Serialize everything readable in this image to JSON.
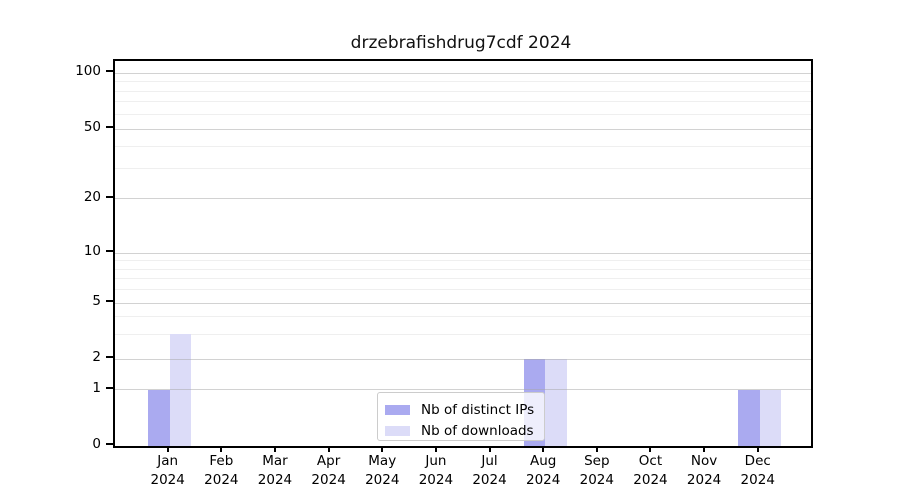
{
  "chart_data": {
    "type": "bar",
    "title": "drzebrafishdrug7cdf 2024",
    "categories": [
      "Jan 2024",
      "Feb 2024",
      "Mar 2024",
      "Apr 2024",
      "May 2024",
      "Jun 2024",
      "Jul 2024",
      "Aug 2024",
      "Sep 2024",
      "Oct 2024",
      "Nov 2024",
      "Dec 2024"
    ],
    "series": [
      {
        "name": "Nb of distinct IPs",
        "color": "#aaaaf0",
        "values": [
          1,
          0,
          0,
          0,
          0,
          0,
          0,
          2,
          0,
          0,
          0,
          1
        ]
      },
      {
        "name": "Nb of downloads",
        "color": "#dcdcf8",
        "values": [
          3,
          0,
          0,
          0,
          0,
          0,
          0,
          2,
          0,
          0,
          0,
          1
        ]
      }
    ],
    "xlabel": "",
    "ylabel": "",
    "y_axis": {
      "scale": "log-like with 0 baseline",
      "major_ticks": [
        0,
        1,
        2,
        5,
        10,
        20,
        50,
        100
      ],
      "minor_ticks": [
        3,
        4,
        6,
        7,
        8,
        9,
        30,
        40,
        60,
        70,
        80,
        90
      ],
      "ylim": [
        0,
        116
      ]
    },
    "grid": true,
    "legend_position": "lower center"
  },
  "colors": {
    "distinct_ips": "#aaaaf0",
    "downloads": "#dcdcf8",
    "grid_major": "#d2d2d2",
    "grid_minor": "#efefef",
    "spine": "#000000",
    "legend_border": "#cccccc"
  }
}
